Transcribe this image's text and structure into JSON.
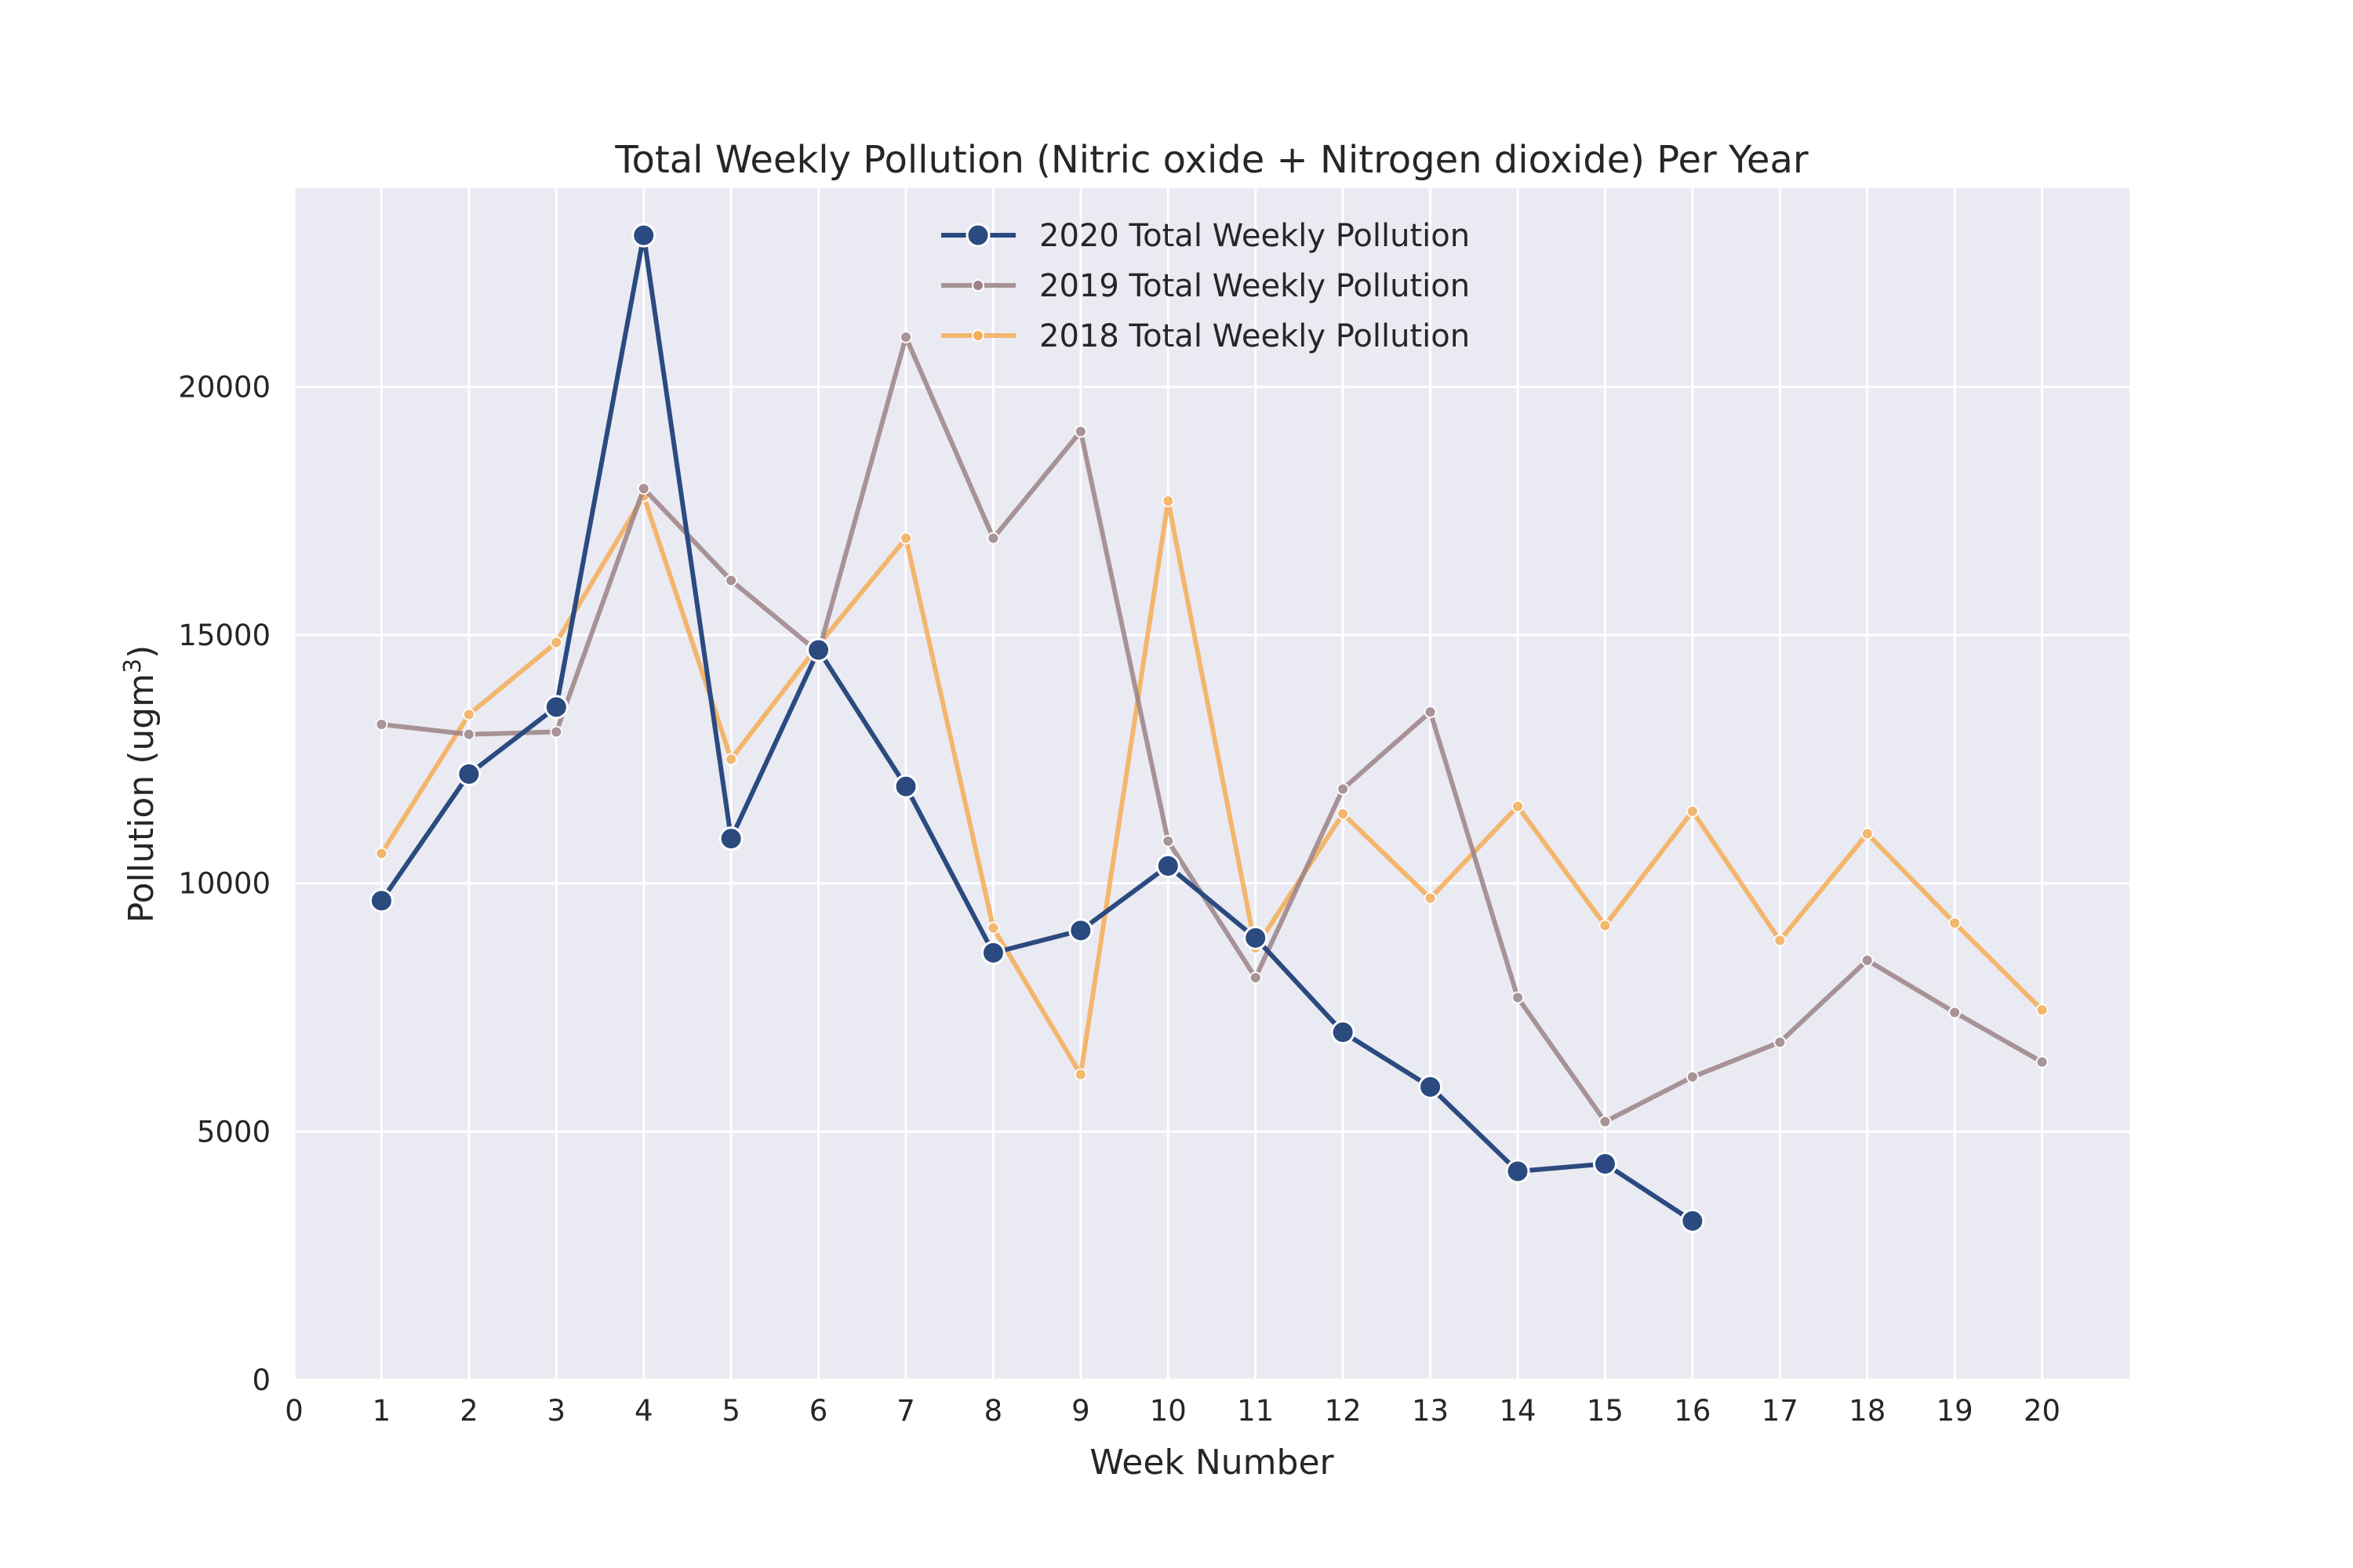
{
  "chart_data": {
    "type": "line",
    "title": "Total Weekly Pollution (Nitric oxide + Nitrogen dioxide) Per Year",
    "xlabel": "Week Number",
    "ylabel_prefix": "Pollution (ugm",
    "ylabel_sup": "3",
    "ylabel_suffix": ")",
    "xlim": [
      0,
      21
    ],
    "ylim": [
      0,
      24000
    ],
    "xticks": [
      0,
      1,
      2,
      3,
      4,
      5,
      6,
      7,
      8,
      9,
      10,
      11,
      12,
      13,
      14,
      15,
      16,
      17,
      18,
      19,
      20
    ],
    "yticks": [
      0,
      5000,
      10000,
      15000,
      20000
    ],
    "grid": true,
    "legend_position": "top-center",
    "background_color": "#eaeaf2",
    "series": [
      {
        "name": "2020 Total Weekly Pollution",
        "color": "#2b4a80",
        "marker": "large-circle",
        "x": [
          1,
          2,
          3,
          4,
          5,
          6,
          7,
          8,
          9,
          10,
          11,
          12,
          13,
          14,
          15,
          16
        ],
        "y": [
          9650,
          12200,
          13550,
          23050,
          10900,
          14700,
          11950,
          8600,
          9050,
          10350,
          8900,
          7000,
          5900,
          4200,
          4350,
          3200
        ]
      },
      {
        "name": "2019 Total Weekly Pollution",
        "color": "#9c8386",
        "marker": "small-circle",
        "x": [
          1,
          2,
          3,
          4,
          5,
          6,
          7,
          8,
          9,
          10,
          11,
          12,
          13,
          14,
          15,
          16,
          17,
          18,
          19,
          20
        ],
        "y": [
          13200,
          13000,
          13050,
          17950,
          16100,
          14650,
          21000,
          16950,
          19100,
          10850,
          8100,
          11900,
          13450,
          7700,
          5200,
          6100,
          6800,
          8450,
          7400,
          6400
        ]
      },
      {
        "name": "2018 Total Weekly Pollution",
        "color": "#f5ad56",
        "marker": "small-circle",
        "x": [
          1,
          2,
          3,
          4,
          5,
          6,
          7,
          8,
          9,
          10,
          11,
          12,
          13,
          14,
          15,
          16,
          17,
          18,
          19,
          20
        ],
        "y": [
          10600,
          13400,
          14850,
          17800,
          12500,
          14800,
          16950,
          9100,
          6150,
          17700,
          8700,
          11400,
          9700,
          11550,
          9150,
          11450,
          8850,
          11000,
          9200,
          7450
        ]
      }
    ]
  }
}
